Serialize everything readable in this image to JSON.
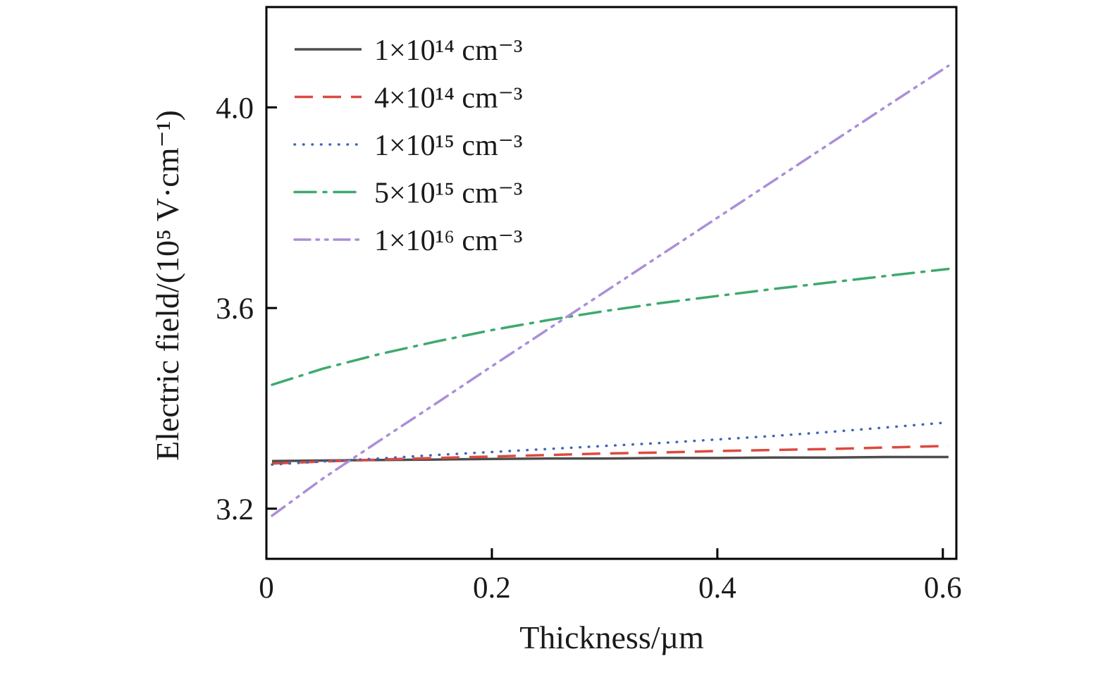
{
  "figure": {
    "background": "#ffffff",
    "frame_color": "#000000",
    "text_color": "#1a1a1a"
  },
  "chart_data": {
    "type": "line",
    "title": "",
    "xlabel": "Thickness/µm",
    "ylabel": "Electric field/(10⁵ V·cm⁻¹)",
    "xlim": [
      0,
      0.612
    ],
    "ylim": [
      3.1,
      4.2
    ],
    "xticks": [
      0,
      0.2,
      0.4,
      0.6
    ],
    "xtick_labels": [
      "0",
      "0.2",
      "0.4",
      "0.6"
    ],
    "yticks": [
      3.2,
      3.6,
      4.0
    ],
    "ytick_labels": [
      "3.2",
      "3.6",
      "4.0"
    ],
    "grid": false,
    "legend_position": "upper-left-inside",
    "x": [
      0.005,
      0.05,
      0.1,
      0.15,
      0.2,
      0.25,
      0.3,
      0.35,
      0.4,
      0.45,
      0.5,
      0.55,
      0.605
    ],
    "series": [
      {
        "name": "1×10¹⁴ cm⁻³",
        "color": "#4d4d4d",
        "style": "solid",
        "values": [
          3.295,
          3.296,
          3.297,
          3.298,
          3.299,
          3.3,
          3.3,
          3.301,
          3.301,
          3.302,
          3.302,
          3.303,
          3.303
        ]
      },
      {
        "name": "4×10¹⁴ cm⁻³",
        "color": "#dd4a3f",
        "style": "dashed",
        "values": [
          3.29,
          3.294,
          3.298,
          3.301,
          3.304,
          3.307,
          3.31,
          3.312,
          3.315,
          3.317,
          3.319,
          3.322,
          3.325
        ]
      },
      {
        "name": "1×10¹⁵ cm⁻³",
        "color": "#3a67b8",
        "style": "dotted",
        "values": [
          3.288,
          3.294,
          3.3,
          3.307,
          3.313,
          3.319,
          3.325,
          3.331,
          3.338,
          3.345,
          3.353,
          3.362,
          3.372
        ]
      },
      {
        "name": "5×10¹⁵ cm⁻³",
        "color": "#3fa96e",
        "style": "dashdot",
        "values": [
          3.447,
          3.479,
          3.508,
          3.533,
          3.556,
          3.576,
          3.594,
          3.61,
          3.624,
          3.638,
          3.651,
          3.664,
          3.678
        ]
      },
      {
        "name": "1×10¹⁶ cm⁻³",
        "color": "#ab8fd8",
        "style": "dashdotdot",
        "values": [
          3.186,
          3.26,
          3.335,
          3.409,
          3.484,
          3.558,
          3.632,
          3.706,
          3.78,
          3.854,
          3.928,
          4.002,
          4.083
        ]
      }
    ]
  }
}
